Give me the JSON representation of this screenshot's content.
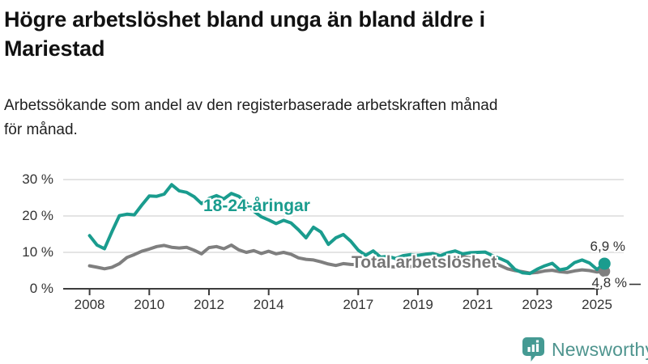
{
  "header": {
    "title_line1": "Högre arbetslöshet bland unga än bland äldre i",
    "title_line2": "Mariestad",
    "subtitle_line1": "Arbetssökande som andel av den registerbaserade arbetskraften månad",
    "subtitle_line2": "för månad."
  },
  "chart_data": {
    "type": "line",
    "title": "Högre arbetslöshet bland unga än bland äldre i Mariestad",
    "subtitle": "Arbetssökande som andel av den registerbaserade arbetskraften månad för månad.",
    "xlabel": "",
    "ylabel": "",
    "grid": "horizontal",
    "legend_position": "inline-labels",
    "xlim": [
      2007.1,
      2025.9
    ],
    "ylim": [
      0,
      32
    ],
    "x_ticks": [
      {
        "value": 2008,
        "label": "2008"
      },
      {
        "value": 2010,
        "label": "2010"
      },
      {
        "value": 2012,
        "label": "2012"
      },
      {
        "value": 2014,
        "label": "2014"
      },
      {
        "value": 2017,
        "label": "2017"
      },
      {
        "value": 2019,
        "label": "2019"
      },
      {
        "value": 2021,
        "label": "2021"
      },
      {
        "value": 2023,
        "label": "2023"
      },
      {
        "value": 2025,
        "label": "2025"
      }
    ],
    "y_ticks": [
      {
        "value": 30,
        "label": "30 %"
      },
      {
        "value": 20,
        "label": "20 %"
      },
      {
        "value": 10,
        "label": "10 %"
      },
      {
        "value": 0,
        "label": "0 %"
      }
    ],
    "x": [
      2008,
      2008.25,
      2008.5,
      2008.75,
      2009,
      2009.25,
      2009.5,
      2009.75,
      2010,
      2010.25,
      2010.5,
      2010.75,
      2011,
      2011.25,
      2011.5,
      2011.75,
      2012,
      2012.25,
      2012.5,
      2012.75,
      2013,
      2013.25,
      2013.5,
      2013.75,
      2014,
      2014.25,
      2014.5,
      2014.75,
      2015,
      2015.25,
      2015.5,
      2015.75,
      2016,
      2016.25,
      2016.5,
      2016.75,
      2017,
      2017.25,
      2017.5,
      2017.75,
      2018,
      2018.25,
      2018.5,
      2018.75,
      2019,
      2019.25,
      2019.5,
      2019.75,
      2020,
      2020.25,
      2020.5,
      2020.75,
      2021,
      2021.25,
      2021.5,
      2021.75,
      2022,
      2022.25,
      2022.5,
      2022.75,
      2023,
      2023.25,
      2023.5,
      2023.75,
      2024,
      2024.25,
      2024.5,
      2024.75,
      2025,
      2025.25
    ],
    "series": [
      {
        "name": "18-24-åringar",
        "color": "#1a9c8e",
        "end_label": "6,9 %",
        "end_value": 6.9,
        "values": [
          14.6,
          12.0,
          11.0,
          15.7,
          20.1,
          20.5,
          20.3,
          23.0,
          25.5,
          25.4,
          26.0,
          28.6,
          26.9,
          26.5,
          25.3,
          23.4,
          24.8,
          25.6,
          24.7,
          26.2,
          25.4,
          23.6,
          21.3,
          19.8,
          18.9,
          17.9,
          18.8,
          18.1,
          16.2,
          14.0,
          16.9,
          15.6,
          12.2,
          14.0,
          14.9,
          13.1,
          10.6,
          9.2,
          10.4,
          8.7,
          8.9,
          8.3,
          9.1,
          9.4,
          9.2,
          9.5,
          9.7,
          9.1,
          9.9,
          10.4,
          9.6,
          9.9,
          10.0,
          10.1,
          9.1,
          8.3,
          7.4,
          5.3,
          4.4,
          4.2,
          5.4,
          6.3,
          7.0,
          5.2,
          5.6,
          7.2,
          7.9,
          7.1,
          5.3,
          6.9
        ]
      },
      {
        "name": "Total arbetslöshet",
        "color": "#7f7f7f",
        "end_label": "4,8 %",
        "end_value": 4.8,
        "values": [
          6.3,
          5.9,
          5.5,
          5.9,
          6.9,
          8.6,
          9.4,
          10.3,
          10.9,
          11.6,
          11.9,
          11.4,
          11.2,
          11.4,
          10.6,
          9.6,
          11.3,
          11.6,
          11.0,
          12.0,
          10.7,
          10.0,
          10.5,
          9.7,
          10.3,
          9.6,
          10.0,
          9.5,
          8.5,
          8.1,
          7.9,
          7.4,
          6.8,
          6.4,
          6.9,
          6.7,
          6.6,
          6.4,
          6.7,
          6.3,
          6.1,
          6.0,
          6.2,
          6.1,
          6.3,
          6.4,
          6.5,
          6.7,
          7.2,
          8.6,
          8.9,
          8.5,
          8.2,
          7.8,
          7.2,
          6.4,
          5.5,
          5.0,
          4.7,
          4.3,
          4.5,
          4.9,
          5.1,
          4.7,
          4.5,
          4.9,
          5.2,
          5.0,
          4.6,
          4.8
        ]
      }
    ]
  },
  "colors": {
    "youth_line": "#1a9c8e",
    "total_line": "#7f7f7f",
    "total_label_text": "#767676",
    "gridline": "#dcdcdc",
    "axis": "#3c3c3c",
    "tick_text": "#333333",
    "brand_teal": "#459a93"
  },
  "footer": {
    "brand": "Newsworthy"
  }
}
